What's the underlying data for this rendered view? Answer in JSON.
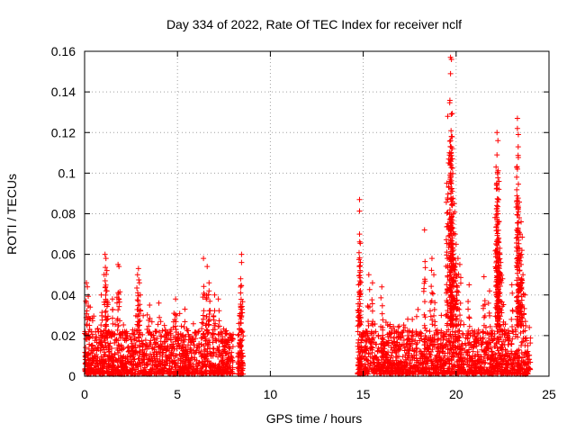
{
  "chart_data": {
    "type": "scatter",
    "title": "Day 334 of 2022, Rate Of TEC Index for receiver nclf",
    "xlabel": "GPS time / hours",
    "ylabel": "ROTI / TECUs",
    "xlim": [
      0,
      25
    ],
    "ylim": [
      0,
      0.16
    ],
    "x_ticks": [
      0,
      5,
      10,
      15,
      20,
      25
    ],
    "y_ticks": [
      0,
      0.02,
      0.04,
      0.06,
      0.08,
      0.1,
      0.12,
      0.14,
      0.16
    ],
    "x_tick_labels": [
      "0",
      "5",
      "10",
      "15",
      "20",
      "25"
    ],
    "y_tick_labels": [
      "0",
      "0.02",
      "0.04",
      "0.06",
      "0.08",
      "0.1",
      "0.12",
      "0.14",
      "0.16"
    ],
    "grid": true,
    "marker": "+",
    "color": "#ff0000",
    "segments": [
      {
        "start": 0.0,
        "end": 8.0,
        "base_max": 0.022,
        "bursts": [
          {
            "x": 0.1,
            "y": 0.046
          },
          {
            "x": 0.15,
            "y": 0.044
          },
          {
            "x": 0.3,
            "y": 0.034
          },
          {
            "x": 1.1,
            "y": 0.06
          },
          {
            "x": 1.15,
            "y": 0.058
          },
          {
            "x": 1.2,
            "y": 0.052
          },
          {
            "x": 1.2,
            "y": 0.042
          },
          {
            "x": 0.9,
            "y": 0.04
          },
          {
            "x": 1.5,
            "y": 0.038
          },
          {
            "x": 1.8,
            "y": 0.055
          },
          {
            "x": 1.85,
            "y": 0.054
          },
          {
            "x": 2.9,
            "y": 0.053
          },
          {
            "x": 2.85,
            "y": 0.05
          },
          {
            "x": 2.95,
            "y": 0.046
          },
          {
            "x": 3.0,
            "y": 0.04
          },
          {
            "x": 3.5,
            "y": 0.035
          },
          {
            "x": 4.0,
            "y": 0.036
          },
          {
            "x": 4.9,
            "y": 0.038
          },
          {
            "x": 5.4,
            "y": 0.033
          },
          {
            "x": 6.4,
            "y": 0.058
          },
          {
            "x": 6.6,
            "y": 0.054
          },
          {
            "x": 6.7,
            "y": 0.046
          },
          {
            "x": 6.7,
            "y": 0.042
          },
          {
            "x": 7.0,
            "y": 0.04
          },
          {
            "x": 7.2,
            "y": 0.038
          }
        ]
      },
      {
        "start": 8.25,
        "end": 8.55,
        "base_max": 0.012,
        "bursts": [
          {
            "x": 8.45,
            "y": 0.06
          },
          {
            "x": 8.45,
            "y": 0.056
          },
          {
            "x": 8.4,
            "y": 0.048
          },
          {
            "x": 8.4,
            "y": 0.041
          },
          {
            "x": 8.35,
            "y": 0.03
          },
          {
            "x": 8.3,
            "y": 0.026
          }
        ]
      },
      {
        "start": 14.7,
        "end": 24.0,
        "base_max": 0.022,
        "bursts": [
          {
            "x": 14.8,
            "y": 0.087
          },
          {
            "x": 14.8,
            "y": 0.07
          },
          {
            "x": 14.85,
            "y": 0.056
          },
          {
            "x": 14.8,
            "y": 0.054
          },
          {
            "x": 14.75,
            "y": 0.045
          },
          {
            "x": 15.3,
            "y": 0.05
          },
          {
            "x": 15.5,
            "y": 0.046
          },
          {
            "x": 16.0,
            "y": 0.044
          },
          {
            "x": 18.3,
            "y": 0.072
          },
          {
            "x": 18.7,
            "y": 0.058
          },
          {
            "x": 18.8,
            "y": 0.05
          },
          {
            "x": 19.5,
            "y": 0.095
          },
          {
            "x": 19.7,
            "y": 0.157
          },
          {
            "x": 19.75,
            "y": 0.156
          },
          {
            "x": 19.7,
            "y": 0.149
          },
          {
            "x": 19.55,
            "y": 0.128
          },
          {
            "x": 19.75,
            "y": 0.118
          },
          {
            "x": 19.7,
            "y": 0.116
          },
          {
            "x": 19.8,
            "y": 0.112
          },
          {
            "x": 19.75,
            "y": 0.107
          },
          {
            "x": 19.9,
            "y": 0.085
          },
          {
            "x": 19.85,
            "y": 0.08
          },
          {
            "x": 19.8,
            "y": 0.075
          },
          {
            "x": 19.95,
            "y": 0.07
          },
          {
            "x": 20.0,
            "y": 0.065
          },
          {
            "x": 20.1,
            "y": 0.058
          },
          {
            "x": 20.2,
            "y": 0.055
          },
          {
            "x": 20.0,
            "y": 0.05
          },
          {
            "x": 20.7,
            "y": 0.045
          },
          {
            "x": 21.5,
            "y": 0.049
          },
          {
            "x": 21.8,
            "y": 0.042
          },
          {
            "x": 22.2,
            "y": 0.12
          },
          {
            "x": 22.25,
            "y": 0.116
          },
          {
            "x": 22.2,
            "y": 0.109
          },
          {
            "x": 22.15,
            "y": 0.103
          },
          {
            "x": 22.2,
            "y": 0.094
          },
          {
            "x": 22.3,
            "y": 0.092
          },
          {
            "x": 22.25,
            "y": 0.08
          },
          {
            "x": 22.3,
            "y": 0.076
          },
          {
            "x": 22.3,
            "y": 0.066
          },
          {
            "x": 22.35,
            "y": 0.063
          },
          {
            "x": 22.4,
            "y": 0.056
          },
          {
            "x": 22.5,
            "y": 0.048
          },
          {
            "x": 23.3,
            "y": 0.127
          },
          {
            "x": 23.3,
            "y": 0.122
          },
          {
            "x": 23.35,
            "y": 0.119
          },
          {
            "x": 23.3,
            "y": 0.102
          },
          {
            "x": 23.4,
            "y": 0.078
          },
          {
            "x": 23.5,
            "y": 0.076
          },
          {
            "x": 23.45,
            "y": 0.07
          },
          {
            "x": 23.4,
            "y": 0.063
          },
          {
            "x": 23.5,
            "y": 0.06
          },
          {
            "x": 23.5,
            "y": 0.055
          },
          {
            "x": 23.6,
            "y": 0.05
          },
          {
            "x": 23.0,
            "y": 0.045
          },
          {
            "x": 23.7,
            "y": 0.04
          }
        ]
      }
    ]
  }
}
